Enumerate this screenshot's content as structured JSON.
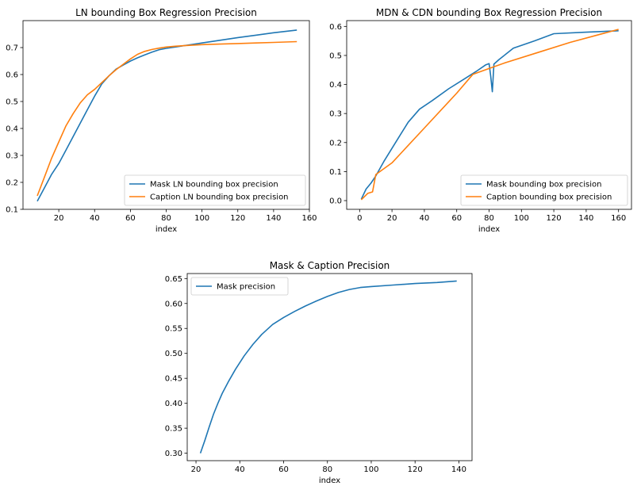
{
  "chart_data": [
    {
      "type": "line",
      "title": "LN bounding Box Regression Precision",
      "xlabel": "index",
      "ylabel": "",
      "xlim": [
        0,
        160
      ],
      "ylim": [
        0.1,
        0.8
      ],
      "xticks": [
        20,
        40,
        60,
        80,
        100,
        120,
        140,
        160
      ],
      "yticks": [
        0.1,
        0.2,
        0.3,
        0.4,
        0.5,
        0.6,
        0.7
      ],
      "grid": false,
      "legend_position": "bottom-right",
      "series": [
        {
          "name": "Mask LN bounding box precision",
          "color": "#1f77b4",
          "x": [
            8,
            12,
            16,
            20,
            24,
            28,
            32,
            36,
            40,
            44,
            48,
            52,
            56,
            60,
            64,
            68,
            72,
            76,
            80,
            85,
            90,
            95,
            100,
            110,
            120,
            130,
            140,
            153
          ],
          "y": [
            0.13,
            0.18,
            0.23,
            0.27,
            0.32,
            0.37,
            0.42,
            0.47,
            0.52,
            0.565,
            0.595,
            0.62,
            0.635,
            0.65,
            0.662,
            0.673,
            0.683,
            0.692,
            0.697,
            0.702,
            0.707,
            0.712,
            0.717,
            0.727,
            0.737,
            0.746,
            0.755,
            0.765
          ]
        },
        {
          "name": "Caption LN bounding box precision",
          "color": "#ff7f0e",
          "x": [
            8,
            12,
            16,
            20,
            24,
            28,
            32,
            36,
            40,
            44,
            48,
            52,
            56,
            60,
            64,
            68,
            72,
            76,
            80,
            85,
            90,
            95,
            100,
            110,
            120,
            130,
            140,
            153
          ],
          "y": [
            0.15,
            0.22,
            0.29,
            0.35,
            0.41,
            0.455,
            0.495,
            0.525,
            0.545,
            0.57,
            0.595,
            0.618,
            0.638,
            0.658,
            0.675,
            0.686,
            0.693,
            0.698,
            0.702,
            0.705,
            0.707,
            0.709,
            0.711,
            0.713,
            0.715,
            0.717,
            0.719,
            0.722
          ]
        }
      ]
    },
    {
      "type": "line",
      "title": "MDN & CDN bounding Box Regression Precision",
      "xlabel": "index",
      "ylabel": "",
      "xlim": [
        -8,
        168
      ],
      "ylim": [
        -0.03,
        0.62
      ],
      "xticks": [
        0,
        20,
        40,
        60,
        80,
        100,
        120,
        140,
        160
      ],
      "yticks": [
        0.0,
        0.1,
        0.2,
        0.3,
        0.4,
        0.5,
        0.6
      ],
      "grid": false,
      "legend_position": "bottom-right",
      "series": [
        {
          "name": "Mask bounding box precision",
          "color": "#1f77b4",
          "x": [
            1,
            4,
            7,
            10,
            15,
            20,
            25,
            30,
            37,
            45,
            55,
            65,
            72,
            78,
            80,
            81,
            82,
            83,
            86,
            95,
            108,
            120,
            140,
            160
          ],
          "y": [
            0.005,
            0.04,
            0.06,
            0.085,
            0.135,
            0.18,
            0.225,
            0.27,
            0.315,
            0.345,
            0.385,
            0.42,
            0.445,
            0.468,
            0.472,
            0.43,
            0.375,
            0.47,
            0.485,
            0.525,
            0.55,
            0.575,
            0.58,
            0.585
          ]
        },
        {
          "name": "Caption bounding box precision",
          "color": "#ff7f0e",
          "x": [
            1,
            5,
            8,
            10,
            20,
            40,
            60,
            70,
            80,
            90,
            110,
            130,
            160
          ],
          "y": [
            0.003,
            0.025,
            0.03,
            0.09,
            0.13,
            0.25,
            0.37,
            0.435,
            0.455,
            0.475,
            0.51,
            0.545,
            0.59
          ]
        }
      ]
    },
    {
      "type": "line",
      "title": "Mask & Caption Precision",
      "xlabel": "index",
      "ylabel": "",
      "xlim": [
        16,
        146
      ],
      "ylim": [
        0.285,
        0.66
      ],
      "xticks": [
        20,
        40,
        60,
        80,
        100,
        120,
        140
      ],
      "yticks": [
        0.3,
        0.35,
        0.4,
        0.45,
        0.5,
        0.55,
        0.6,
        0.65
      ],
      "grid": false,
      "legend_position": "top-left",
      "series": [
        {
          "name": "Mask precision",
          "color": "#1f77b4",
          "x": [
            22,
            24,
            26,
            28,
            30,
            32,
            35,
            38,
            42,
            46,
            50,
            55,
            60,
            65,
            70,
            75,
            80,
            85,
            90,
            95,
            100,
            110,
            120,
            130,
            139
          ],
          "y": [
            0.3,
            0.325,
            0.352,
            0.378,
            0.4,
            0.42,
            0.445,
            0.468,
            0.495,
            0.518,
            0.538,
            0.558,
            0.572,
            0.584,
            0.595,
            0.605,
            0.614,
            0.622,
            0.628,
            0.632,
            0.634,
            0.637,
            0.64,
            0.642,
            0.645
          ]
        }
      ]
    }
  ]
}
